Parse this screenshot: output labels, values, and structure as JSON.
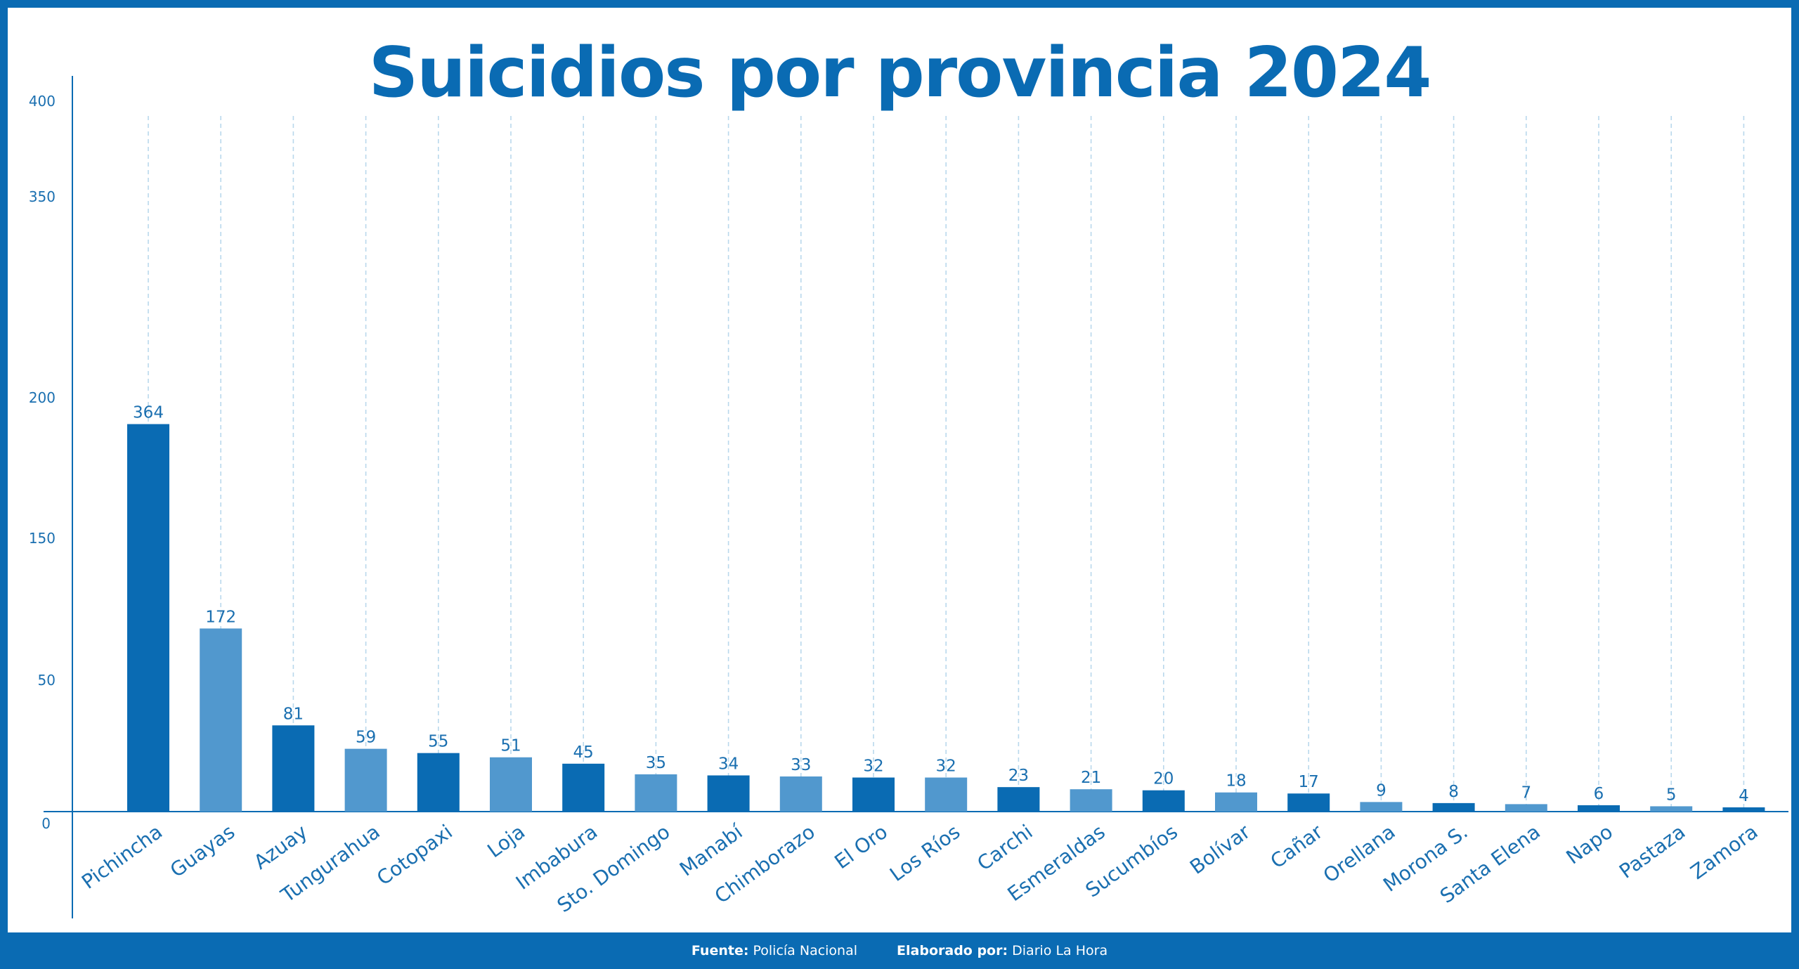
{
  "title": "Suicidios por provincia 2024",
  "footer": {
    "source_label": "Fuente:",
    "source_value": "Policía Nacional",
    "author_label": "Elaborado por:",
    "author_value": "Diario La Hora"
  },
  "colors": {
    "frame": "#0a6bb3",
    "bar_dark": "#0a6bb3",
    "bar_light": "#5198ce",
    "grid": "#b9d8ec",
    "text": "#1a6fb0"
  },
  "chart_data": {
    "type": "bar",
    "title": "Suicidios por provincia 2024",
    "xlabel": "",
    "ylabel": "",
    "yticks": [
      0,
      50,
      150,
      200,
      350,
      400
    ],
    "categories": [
      "Pichincha",
      "Guayas",
      "Azuay",
      "Tungurahua",
      "Cotopaxi",
      "Loja",
      "Imbabura",
      "Sto. Domingo",
      "Manabí",
      "Chimborazo",
      "El Oro",
      "Los Ríos",
      "Carchi",
      "Esmeraldas",
      "Sucumbíos",
      "Bolívar",
      "Cañar",
      "Orellana",
      "Morona S.",
      "Santa Elena",
      "Napo",
      "Pastaza",
      "Zamora"
    ],
    "values": [
      364,
      172,
      81,
      59,
      55,
      51,
      45,
      35,
      34,
      33,
      32,
      32,
      23,
      21,
      20,
      18,
      17,
      9,
      8,
      7,
      6,
      5,
      4
    ],
    "bar_colors": [
      "dark",
      "light",
      "dark",
      "light",
      "dark",
      "light",
      "dark",
      "light",
      "dark",
      "light",
      "dark",
      "light",
      "dark",
      "light",
      "dark",
      "light",
      "dark",
      "light",
      "dark",
      "light",
      "dark",
      "light",
      "dark"
    ],
    "grid": "vertical dashed"
  }
}
